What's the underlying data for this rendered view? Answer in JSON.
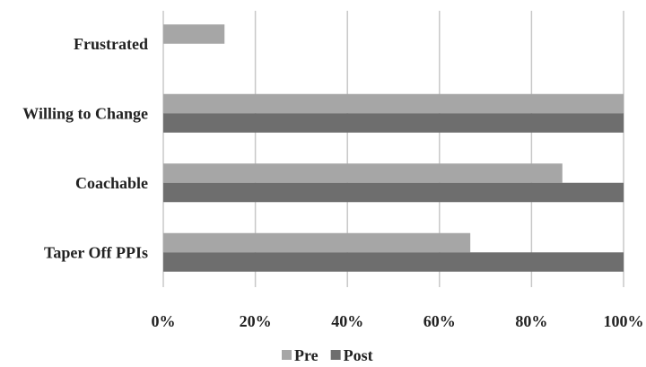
{
  "chart_data": {
    "type": "bar",
    "orientation": "horizontal",
    "categories": [
      "Frustrated",
      "Willing to Change",
      "Coachable",
      "Taper Off PPIs"
    ],
    "series": [
      {
        "name": "Pre",
        "color": "#a6a6a6",
        "values": [
          13.3,
          100,
          86.7,
          66.7
        ]
      },
      {
        "name": "Post",
        "color": "#6e6e6e",
        "values": [
          0,
          100,
          100,
          100
        ]
      }
    ],
    "xlim": [
      0,
      100
    ],
    "xticks": [
      "0%",
      "20%",
      "40%",
      "60%",
      "80%",
      "100%"
    ],
    "grid": true,
    "legend_position": "bottom"
  }
}
